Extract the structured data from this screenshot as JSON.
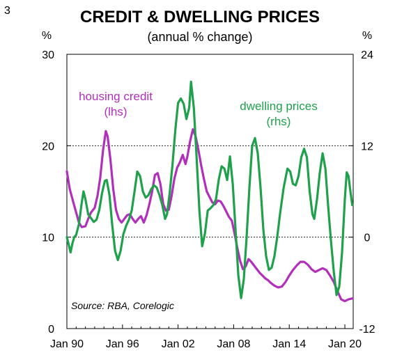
{
  "page_number": "3",
  "chart_data": {
    "type": "line",
    "title": "CREDIT & DWELLING PRICES",
    "subtitle": "(annual % change)",
    "y_left_unit": "%",
    "y_right_unit": "%",
    "y_left_range": [
      0,
      30
    ],
    "y_right_range": [
      -12,
      24
    ],
    "y_left_ticks": [
      "0",
      "10",
      "20",
      "30"
    ],
    "y_right_ticks": [
      "-12",
      "0",
      "12",
      "24"
    ],
    "x_range": [
      1990.0,
      2020.9
    ],
    "x_ticks": [
      {
        "label": "Jan 90",
        "x": 1990
      },
      {
        "label": "Jan 96",
        "x": 1996
      },
      {
        "label": "Jan 02",
        "x": 2002
      },
      {
        "label": "Jan 08",
        "x": 2008
      },
      {
        "label": "Jan 14",
        "x": 2014
      },
      {
        "label": "Jan 20",
        "x": 2020
      }
    ],
    "gridlines_at_left": [
      10,
      20
    ],
    "source": "Source: RBA, Corelogic",
    "series": [
      {
        "name": "housing credit",
        "axis_note": "(lhs)",
        "axis": "left",
        "color": "#b12fbb",
        "points": [
          [
            1990.0,
            17.2
          ],
          [
            1990.3,
            15.3
          ],
          [
            1990.7,
            13.8
          ],
          [
            1991.0,
            12.7
          ],
          [
            1991.3,
            11.6
          ],
          [
            1991.6,
            11.1
          ],
          [
            1992.0,
            11.2
          ],
          [
            1992.3,
            12.0
          ],
          [
            1992.6,
            12.7
          ],
          [
            1993.0,
            13.2
          ],
          [
            1993.3,
            14.5
          ],
          [
            1993.6,
            16.5
          ],
          [
            1993.9,
            19.5
          ],
          [
            1994.2,
            21.6
          ],
          [
            1994.4,
            21.0
          ],
          [
            1994.7,
            18.5
          ],
          [
            1995.0,
            15.3
          ],
          [
            1995.3,
            13.0
          ],
          [
            1995.6,
            12.0
          ],
          [
            1995.9,
            11.6
          ],
          [
            1996.2,
            12.0
          ],
          [
            1996.5,
            12.4
          ],
          [
            1996.8,
            12.5
          ],
          [
            1997.1,
            12.0
          ],
          [
            1997.4,
            11.6
          ],
          [
            1997.7,
            12.0
          ],
          [
            1998.0,
            12.3
          ],
          [
            1998.3,
            11.6
          ],
          [
            1998.6,
            12.4
          ],
          [
            1998.9,
            13.6
          ],
          [
            1999.2,
            15.0
          ],
          [
            1999.5,
            16.8
          ],
          [
            1999.8,
            17.0
          ],
          [
            2000.1,
            15.8
          ],
          [
            2000.4,
            13.6
          ],
          [
            2000.7,
            12.9
          ],
          [
            2001.0,
            13.0
          ],
          [
            2001.3,
            14.5
          ],
          [
            2001.6,
            16.4
          ],
          [
            2001.9,
            17.6
          ],
          [
            2002.2,
            18.2
          ],
          [
            2002.5,
            19.0
          ],
          [
            2002.8,
            18.0
          ],
          [
            2003.0,
            18.8
          ],
          [
            2003.3,
            20.5
          ],
          [
            2003.6,
            21.8
          ],
          [
            2003.9,
            21.0
          ],
          [
            2004.2,
            19.5
          ],
          [
            2004.5,
            17.8
          ],
          [
            2004.8,
            16.3
          ],
          [
            2005.1,
            15.0
          ],
          [
            2005.4,
            14.4
          ],
          [
            2005.7,
            13.8
          ],
          [
            2006.0,
            13.6
          ],
          [
            2006.3,
            14.0
          ],
          [
            2006.6,
            13.9
          ],
          [
            2006.9,
            13.4
          ],
          [
            2007.2,
            12.8
          ],
          [
            2007.5,
            12.2
          ],
          [
            2007.8,
            11.8
          ],
          [
            2008.1,
            10.4
          ],
          [
            2008.4,
            8.8
          ],
          [
            2008.7,
            7.4
          ],
          [
            2009.0,
            6.5
          ],
          [
            2009.3,
            6.8
          ],
          [
            2009.6,
            7.6
          ],
          [
            2009.9,
            7.3
          ],
          [
            2010.2,
            6.9
          ],
          [
            2010.5,
            6.5
          ],
          [
            2010.8,
            6.1
          ],
          [
            2011.1,
            5.8
          ],
          [
            2011.4,
            5.5
          ],
          [
            2011.7,
            5.3
          ],
          [
            2012.0,
            5.0
          ],
          [
            2012.4,
            4.7
          ],
          [
            2012.8,
            4.5
          ],
          [
            2013.2,
            4.6
          ],
          [
            2013.6,
            5.1
          ],
          [
            2014.0,
            5.8
          ],
          [
            2014.4,
            6.4
          ],
          [
            2014.8,
            6.9
          ],
          [
            2015.2,
            7.3
          ],
          [
            2015.6,
            7.3
          ],
          [
            2016.0,
            7.0
          ],
          [
            2016.4,
            6.5
          ],
          [
            2016.8,
            6.2
          ],
          [
            2017.2,
            6.4
          ],
          [
            2017.6,
            6.6
          ],
          [
            2018.0,
            6.4
          ],
          [
            2018.4,
            5.8
          ],
          [
            2018.8,
            5.1
          ],
          [
            2019.2,
            4.1
          ],
          [
            2019.6,
            3.2
          ],
          [
            2020.0,
            3.0
          ],
          [
            2020.4,
            3.2
          ],
          [
            2020.8,
            3.3
          ]
        ]
      },
      {
        "name": "dwelling prices",
        "axis_note": "(rhs)",
        "axis": "right",
        "color": "#1fa14c",
        "points": [
          [
            1990.0,
            0.0
          ],
          [
            1990.2,
            -1.0
          ],
          [
            1990.4,
            -2.0
          ],
          [
            1990.6,
            -0.8
          ],
          [
            1990.8,
            0.0
          ],
          [
            1991.0,
            0.3
          ],
          [
            1991.3,
            1.7
          ],
          [
            1991.6,
            4.5
          ],
          [
            1991.8,
            6.0
          ],
          [
            1992.0,
            5.0
          ],
          [
            1992.3,
            3.0
          ],
          [
            1992.6,
            2.5
          ],
          [
            1992.9,
            2.0
          ],
          [
            1993.2,
            2.3
          ],
          [
            1993.5,
            3.6
          ],
          [
            1993.8,
            5.8
          ],
          [
            1994.1,
            7.4
          ],
          [
            1994.3,
            7.5
          ],
          [
            1994.6,
            5.5
          ],
          [
            1994.9,
            1.5
          ],
          [
            1995.2,
            -1.8
          ],
          [
            1995.5,
            -3.0
          ],
          [
            1995.8,
            -1.8
          ],
          [
            1996.1,
            0.4
          ],
          [
            1996.4,
            1.5
          ],
          [
            1996.7,
            2.3
          ],
          [
            1997.0,
            3.5
          ],
          [
            1997.3,
            6.0
          ],
          [
            1997.6,
            8.6
          ],
          [
            1997.9,
            8.0
          ],
          [
            1998.2,
            6.0
          ],
          [
            1998.5,
            5.2
          ],
          [
            1998.8,
            5.5
          ],
          [
            1999.1,
            6.3
          ],
          [
            1999.4,
            6.8
          ],
          [
            1999.7,
            6.5
          ],
          [
            2000.0,
            5.5
          ],
          [
            2000.3,
            4.2
          ],
          [
            2000.6,
            2.4
          ],
          [
            2000.8,
            3.0
          ],
          [
            2001.1,
            5.8
          ],
          [
            2001.4,
            9.5
          ],
          [
            2001.7,
            14.0
          ],
          [
            2002.0,
            17.6
          ],
          [
            2002.3,
            18.2
          ],
          [
            2002.6,
            17.5
          ],
          [
            2002.9,
            15.5
          ],
          [
            2003.2,
            17.0
          ],
          [
            2003.4,
            20.4
          ],
          [
            2003.7,
            17.0
          ],
          [
            2004.0,
            10.5
          ],
          [
            2004.3,
            3.5
          ],
          [
            2004.6,
            -1.2
          ],
          [
            2004.9,
            0.5
          ],
          [
            2005.2,
            3.5
          ],
          [
            2005.5,
            3.8
          ],
          [
            2005.8,
            4.2
          ],
          [
            2006.1,
            5.0
          ],
          [
            2006.4,
            7.6
          ],
          [
            2006.7,
            9.3
          ],
          [
            2007.0,
            9.0
          ],
          [
            2007.3,
            7.5
          ],
          [
            2007.6,
            10.6
          ],
          [
            2007.9,
            7.0
          ],
          [
            2008.2,
            1.0
          ],
          [
            2008.5,
            -5.0
          ],
          [
            2008.8,
            -8.0
          ],
          [
            2009.1,
            -5.5
          ],
          [
            2009.4,
            0.0
          ],
          [
            2009.7,
            6.5
          ],
          [
            2010.0,
            12.0
          ],
          [
            2010.3,
            13.0
          ],
          [
            2010.6,
            11.0
          ],
          [
            2010.9,
            6.5
          ],
          [
            2011.2,
            1.0
          ],
          [
            2011.5,
            -2.5
          ],
          [
            2011.8,
            -4.3
          ],
          [
            2012.1,
            -4.0
          ],
          [
            2012.4,
            -2.5
          ],
          [
            2012.7,
            0.0
          ],
          [
            2013.0,
            3.0
          ],
          [
            2013.4,
            6.5
          ],
          [
            2013.8,
            9.0
          ],
          [
            2014.1,
            8.6
          ],
          [
            2014.4,
            7.0
          ],
          [
            2014.7,
            6.8
          ],
          [
            2015.0,
            8.0
          ],
          [
            2015.3,
            10.5
          ],
          [
            2015.6,
            11.6
          ],
          [
            2015.9,
            10.5
          ],
          [
            2016.2,
            6.0
          ],
          [
            2016.5,
            3.0
          ],
          [
            2016.7,
            2.4
          ],
          [
            2017.0,
            5.0
          ],
          [
            2017.3,
            8.5
          ],
          [
            2017.6,
            11.0
          ],
          [
            2017.9,
            9.0
          ],
          [
            2018.2,
            4.0
          ],
          [
            2018.5,
            -0.5
          ],
          [
            2018.8,
            -4.5
          ],
          [
            2019.1,
            -7.6
          ],
          [
            2019.4,
            -6.5
          ],
          [
            2019.7,
            -2.0
          ],
          [
            2020.0,
            5.0
          ],
          [
            2020.2,
            8.5
          ],
          [
            2020.4,
            8.0
          ],
          [
            2020.6,
            6.0
          ],
          [
            2020.8,
            4.2
          ]
        ]
      }
    ]
  }
}
